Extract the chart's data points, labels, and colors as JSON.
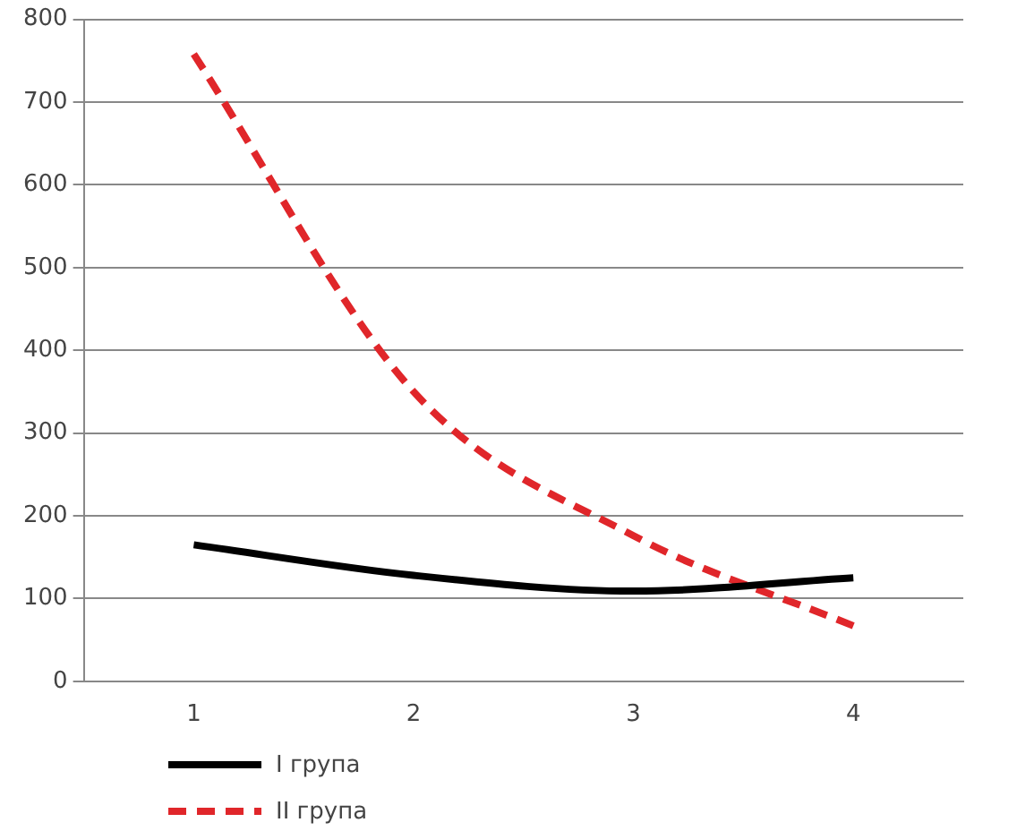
{
  "chart_data": {
    "type": "line",
    "categories": [
      "1",
      "2",
      "3",
      "4"
    ],
    "series": [
      {
        "name": "I група",
        "color": "#000000",
        "line_style": "solid",
        "values": [
          165,
          128,
          109,
          125
        ]
      },
      {
        "name": "II група",
        "color": "#e0262a",
        "line_style": "dashed",
        "values": [
          758,
          350,
          176,
          67
        ]
      }
    ],
    "ylim": [
      0,
      800
    ],
    "yticks": [
      0,
      100,
      200,
      300,
      400,
      500,
      600,
      700,
      800
    ],
    "grid": "y",
    "legend": "bottom left",
    "marker": "none"
  }
}
